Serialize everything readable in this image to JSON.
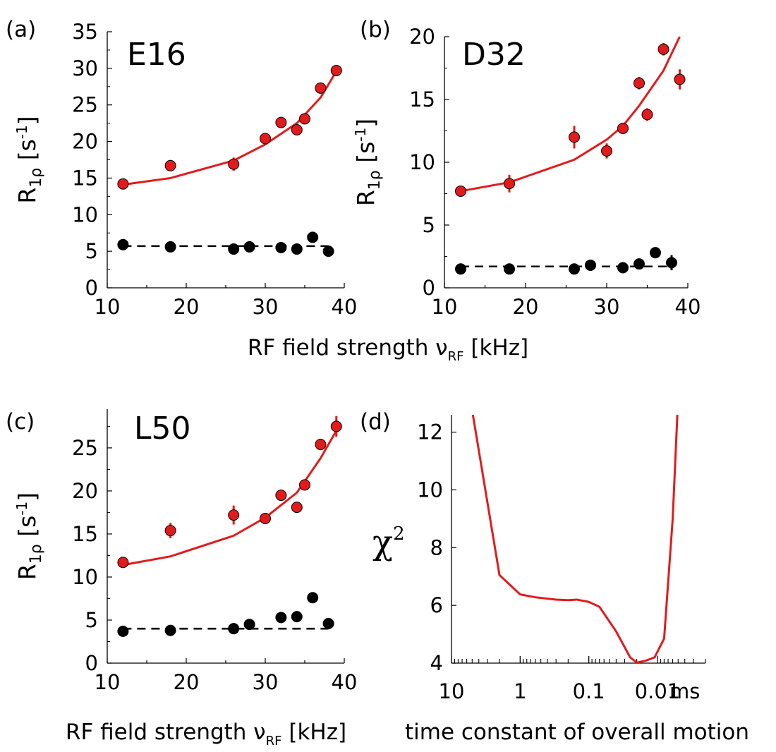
{
  "x_axis_label": {
    "text": "RF field strength ν",
    "sub": "RF",
    "unit": " [kHz]"
  },
  "y_axis_label": {
    "main": "R",
    "sub": "1ρ",
    "unit": " [s",
    "sup": "-1",
    "close": "]"
  },
  "colors": {
    "fit": "#e31a1c",
    "marker_red": "#e31a1c",
    "marker_black": "#000000"
  },
  "chart_data": [
    {
      "type": "scatter",
      "panel_label": "(a)",
      "title": "E16",
      "xlim": [
        10,
        40
      ],
      "ylim": [
        0,
        35
      ],
      "x_ticks": [
        "10",
        "20",
        "30",
        "40"
      ],
      "y_ticks": [
        "0",
        "5",
        "10",
        "15",
        "20",
        "25",
        "30",
        "35"
      ],
      "series": [
        {
          "color": "red",
          "points": [
            [
              12,
              14.2,
              0.4
            ],
            [
              18,
              16.7,
              0.4
            ],
            [
              26,
              16.9,
              0.9
            ],
            [
              30,
              20.4,
              0.4
            ],
            [
              32,
              22.6,
              0.4
            ],
            [
              34,
              21.6,
              0.4
            ],
            [
              35,
              23.1,
              0.4
            ],
            [
              37,
              27.3,
              0.4
            ],
            [
              39,
              29.7,
              0.5
            ]
          ]
        },
        {
          "color": "black",
          "points": [
            [
              12,
              5.9,
              0.2
            ],
            [
              18,
              5.6,
              0.2
            ],
            [
              26,
              5.3,
              0.2
            ],
            [
              28,
              5.6,
              0.2
            ],
            [
              32,
              5.5,
              0.2
            ],
            [
              34,
              5.3,
              0.2
            ],
            [
              36,
              6.9,
              0.2
            ],
            [
              38,
              5.0,
              0.2
            ]
          ]
        }
      ],
      "fit_red": [
        [
          12,
          14.1
        ],
        [
          18,
          15.0
        ],
        [
          26,
          17.4
        ],
        [
          30,
          19.6
        ],
        [
          34,
          22.5
        ],
        [
          37,
          26.0
        ],
        [
          39,
          29.6
        ]
      ],
      "fit_black": {
        "y": 5.7,
        "x": [
          12,
          38
        ]
      }
    },
    {
      "type": "scatter",
      "panel_label": "(b)",
      "title": "D32",
      "xlim": [
        10,
        40
      ],
      "ylim": [
        0,
        20
      ],
      "x_ticks": [
        "10",
        "20",
        "30",
        "40"
      ],
      "y_ticks": [
        "0",
        "5",
        "10",
        "15",
        "20"
      ],
      "series": [
        {
          "color": "red",
          "points": [
            [
              12,
              7.7,
              0.3
            ],
            [
              18,
              8.3,
              0.7
            ],
            [
              26,
              12.0,
              0.9
            ],
            [
              30,
              10.9,
              0.6
            ],
            [
              32,
              12.7,
              0.4
            ],
            [
              34,
              16.3,
              0.5
            ],
            [
              35,
              13.8,
              0.5
            ],
            [
              37,
              19.0,
              0.5
            ],
            [
              39,
              16.6,
              0.8
            ]
          ]
        },
        {
          "color": "black",
          "points": [
            [
              12,
              1.5,
              0.2
            ],
            [
              18,
              1.5,
              0.2
            ],
            [
              26,
              1.5,
              0.2
            ],
            [
              28,
              1.8,
              0.2
            ],
            [
              32,
              1.6,
              0.2
            ],
            [
              34,
              1.9,
              0.2
            ],
            [
              36,
              2.8,
              0.3
            ],
            [
              38,
              2.0,
              0.6
            ]
          ]
        }
      ],
      "fit_red": [
        [
          12,
          7.7
        ],
        [
          18,
          8.4
        ],
        [
          26,
          10.2
        ],
        [
          30,
          11.8
        ],
        [
          32,
          12.9
        ],
        [
          34,
          14.5
        ],
        [
          37,
          17.3
        ],
        [
          39,
          20.0
        ]
      ],
      "fit_black": {
        "y": 1.7,
        "x": [
          12,
          38
        ]
      }
    },
    {
      "type": "scatter",
      "panel_label": "(c)",
      "title": "L50",
      "xlim": [
        10,
        40
      ],
      "ylim": [
        0,
        29.5
      ],
      "x_ticks": [
        "10",
        "20",
        "30",
        "40"
      ],
      "y_ticks": [
        "0",
        "5",
        "10",
        "15",
        "20",
        "25"
      ],
      "series": [
        {
          "color": "red",
          "points": [
            [
              12,
              11.7,
              0.4
            ],
            [
              18,
              15.4,
              0.9
            ],
            [
              26,
              17.2,
              1.1
            ],
            [
              30,
              16.8,
              0.6
            ],
            [
              32,
              19.5,
              0.6
            ],
            [
              34,
              18.1,
              0.4
            ],
            [
              35,
              20.7,
              0.4
            ],
            [
              37,
              25.4,
              0.4
            ],
            [
              39,
              27.5,
              1.2
            ]
          ]
        },
        {
          "color": "black",
          "points": [
            [
              12,
              3.7,
              0.2
            ],
            [
              18,
              3.8,
              0.2
            ],
            [
              26,
              4.0,
              0.2
            ],
            [
              28,
              4.5,
              0.2
            ],
            [
              32,
              5.3,
              0.2
            ],
            [
              34,
              5.4,
              0.2
            ],
            [
              36,
              7.6,
              0.2
            ],
            [
              38,
              4.6,
              0.2
            ]
          ]
        }
      ],
      "fit_red": [
        [
          12,
          11.4
        ],
        [
          18,
          12.4
        ],
        [
          26,
          14.8
        ],
        [
          30,
          16.9
        ],
        [
          34,
          19.8
        ],
        [
          37,
          23.8
        ],
        [
          39,
          27.0
        ]
      ],
      "fit_black": {
        "y": 4.0,
        "x": [
          12,
          38
        ]
      }
    },
    {
      "type": "line",
      "panel_label": "(d)",
      "ylabel": {
        "main": "χ",
        "sup": "2"
      },
      "xlabel": "time constant of overall motion",
      "x_scale": "log",
      "x_reversed": true,
      "x_unit": "ms",
      "xlim_ms": [
        10,
        0.002
      ],
      "ylim": [
        4,
        12.6
      ],
      "x_tick_labels": [
        {
          "ms": 10,
          "label": "10"
        },
        {
          "ms": 1,
          "label": "1"
        },
        {
          "ms": 0.1,
          "label": "0.1"
        },
        {
          "ms": 0.01,
          "label": "0.01"
        }
      ],
      "y_ticks": [
        "4",
        "6",
        "8",
        "10",
        "12"
      ],
      "series": [
        {
          "color": "red",
          "x_ms": [
            5,
            2,
            1,
            0.6,
            0.3,
            0.2,
            0.15,
            0.1,
            0.07,
            0.04,
            0.03,
            0.025,
            0.02,
            0.015,
            0.011,
            0.008,
            0.006,
            0.005
          ],
          "y": [
            12.75,
            7.05,
            6.38,
            6.28,
            6.2,
            6.18,
            6.2,
            6.12,
            5.95,
            5.1,
            4.55,
            4.2,
            4.02,
            4.08,
            4.2,
            4.85,
            9.0,
            13.2
          ]
        }
      ]
    }
  ]
}
